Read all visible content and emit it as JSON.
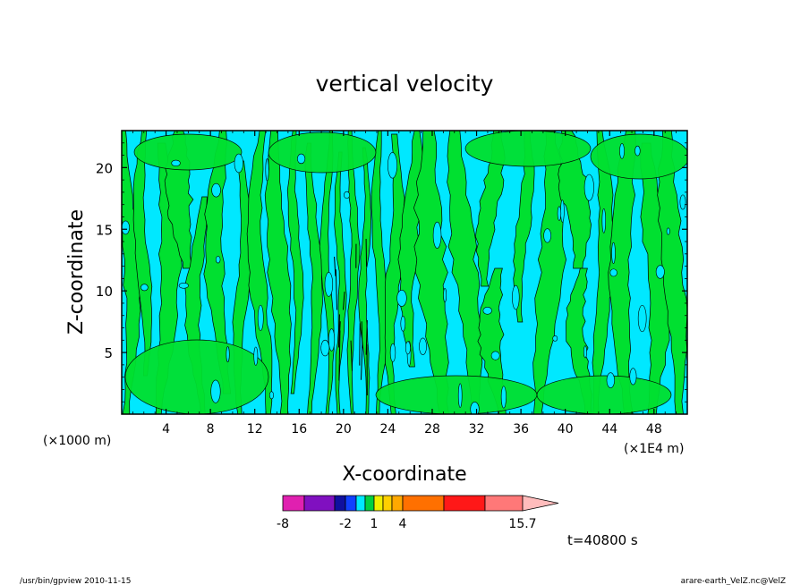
{
  "footer": {
    "left": "/usr/bin/gpview   2010-11-15",
    "right": "arare-earth_VelZ.nc@VelZ"
  },
  "chart_data": {
    "type": "heatmap",
    "title": "vertical velocity",
    "xlabel": "X-coordinate",
    "ylabel": "Z-coordinate",
    "x_unit_label": "(×1000 m)",
    "x_extra_label": "(×1E4 m)",
    "time_label": "t=40800 s",
    "xlim": [
      0,
      51
    ],
    "ylim": [
      0,
      23
    ],
    "x_ticks": [
      4,
      8,
      12,
      16,
      20,
      24,
      28,
      32,
      36,
      40,
      44,
      48
    ],
    "y_ticks": [
      5,
      10,
      15,
      20
    ],
    "colorbar": {
      "levels": [
        -8,
        -6,
        -4,
        -2,
        -1,
        0,
        1,
        2,
        3,
        4,
        6,
        9,
        12,
        15.7
      ],
      "colors": [
        "#e020b0",
        "#8010c0",
        "#1010a0",
        "#1040ff",
        "#00e8ff",
        "#00d040",
        "#f0f000",
        "#ffd000",
        "#ffa800",
        "#ff7000",
        "#ff1818",
        "#ff7878",
        "#ffbcbc"
      ],
      "tick_labels": [
        "-8",
        "-2",
        "1",
        "4",
        "15.7"
      ],
      "tick_values": [
        -8,
        -2,
        1,
        4,
        15.7
      ]
    },
    "field_colors": {
      "negative": "#00e8ff",
      "positive": "#00e030",
      "contour": "#000000"
    }
  }
}
